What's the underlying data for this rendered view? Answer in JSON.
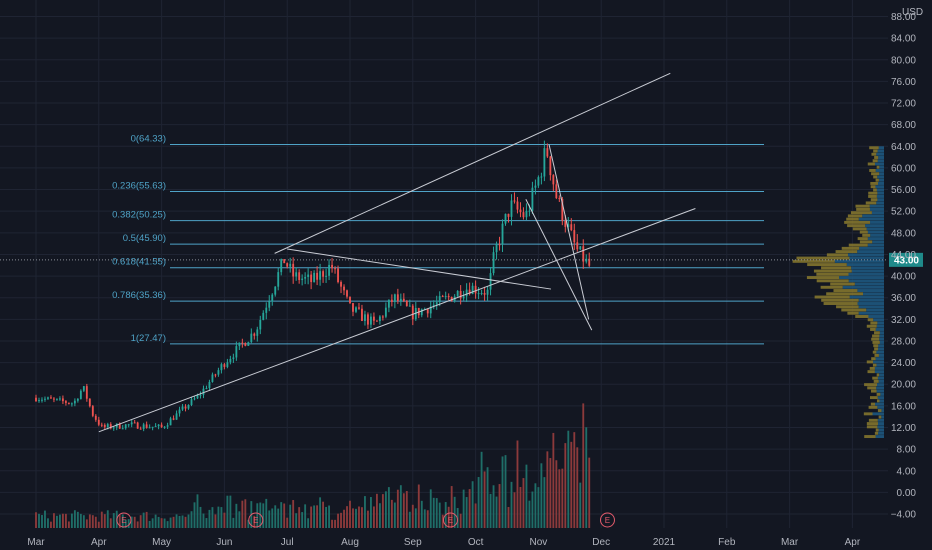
{
  "colors": {
    "background": "#131722",
    "grid": "#1f2433",
    "text": "#b2b5be",
    "up": "#26a69a",
    "down": "#ef5350",
    "fib": "#4fa3c7",
    "trendline": "#c9ccd4",
    "vp_up": "#1e5c85",
    "vp_down": "#8a7a2e",
    "current_price_bg": "#1f8a8a",
    "earnings": "#e35b6c"
  },
  "chart_data": {
    "type": "candlestick",
    "currency": "USD",
    "price_ticks": [
      "88.00",
      "84.00",
      "80.00",
      "76.00",
      "72.00",
      "68.00",
      "64.00",
      "60.00",
      "56.00",
      "52.00",
      "48.00",
      "44.00",
      "40.00",
      "36.00",
      "32.00",
      "28.00",
      "24.00",
      "20.00",
      "16.00",
      "12.00",
      "8.00",
      "4.00",
      "0.00",
      "−4.00"
    ],
    "ylim": [
      -6,
      90
    ],
    "time_labels": [
      "Mar",
      "Apr",
      "May",
      "Jun",
      "Jul",
      "Aug",
      "Sep",
      "Oct",
      "Nov",
      "Dec",
      "2021",
      "Feb",
      "Mar",
      "Apr"
    ],
    "current_price": "43.00",
    "earnings_marker": "E",
    "earnings_months": [
      1.4,
      3.5,
      6.6,
      9.1
    ],
    "fibonacci": [
      {
        "label": "0(64.33)",
        "price": 64.33
      },
      {
        "label": "0.236(55.63)",
        "price": 55.63
      },
      {
        "label": "0.382(50.25)",
        "price": 50.25
      },
      {
        "label": "0.5(45.90)",
        "price": 45.9
      },
      {
        "label": "0.618(41.55)",
        "price": 41.55
      },
      {
        "label": "0.786(35.36)",
        "price": 35.36
      },
      {
        "label": "1(27.47)",
        "price": 27.47
      }
    ],
    "key_prices": [
      {
        "month": 0.0,
        "price": 17.5
      },
      {
        "month": 0.6,
        "price": 16.5
      },
      {
        "month": 0.75,
        "price": 19.5
      },
      {
        "month": 0.9,
        "price": 14.5
      },
      {
        "month": 1.05,
        "price": 12.0
      },
      {
        "month": 1.5,
        "price": 12.5
      },
      {
        "month": 2.0,
        "price": 12.0
      },
      {
        "month": 2.6,
        "price": 18.0
      },
      {
        "month": 3.0,
        "price": 24.0
      },
      {
        "month": 3.5,
        "price": 30.0
      },
      {
        "month": 3.95,
        "price": 43.0
      },
      {
        "month": 4.1,
        "price": 40.0
      },
      {
        "month": 4.4,
        "price": 39.0
      },
      {
        "month": 4.7,
        "price": 42.0
      },
      {
        "month": 5.0,
        "price": 34.0
      },
      {
        "month": 5.4,
        "price": 31.0
      },
      {
        "month": 5.7,
        "price": 36.0
      },
      {
        "month": 6.0,
        "price": 33.0
      },
      {
        "month": 6.4,
        "price": 35.0
      },
      {
        "month": 6.9,
        "price": 38.0
      },
      {
        "month": 7.2,
        "price": 37.0
      },
      {
        "month": 7.3,
        "price": 44.0
      },
      {
        "month": 7.55,
        "price": 53.0
      },
      {
        "month": 7.8,
        "price": 51.0
      },
      {
        "month": 8.0,
        "price": 58.0
      },
      {
        "month": 8.13,
        "price": 63.5
      },
      {
        "month": 8.3,
        "price": 54.0
      },
      {
        "month": 8.6,
        "price": 45.0
      },
      {
        "month": 8.83,
        "price": 41.5
      }
    ],
    "trendlines": [
      {
        "name": "channel-upper",
        "from": {
          "month": 3.8,
          "price": 44.2
        },
        "to": {
          "month": 10.1,
          "price": 77.5
        }
      },
      {
        "name": "channel-lower",
        "from": {
          "month": 1.0,
          "price": 11.2
        },
        "to": {
          "month": 10.5,
          "price": 52.5
        }
      },
      {
        "name": "triangle-top",
        "from": {
          "month": 4.0,
          "price": 45.0
        },
        "to": {
          "month": 8.2,
          "price": 37.6
        }
      },
      {
        "name": "wedge-upper",
        "from": {
          "month": 8.17,
          "price": 64.3
        },
        "to": {
          "month": 8.8,
          "price": 32.0
        }
      },
      {
        "name": "wedge-lower",
        "from": {
          "month": 7.8,
          "price": 54.2
        },
        "to": {
          "month": 8.85,
          "price": 30.0
        }
      }
    ],
    "volume_scale_max": 20,
    "volume_profile_price_range": [
      10.0,
      64.0
    ]
  }
}
